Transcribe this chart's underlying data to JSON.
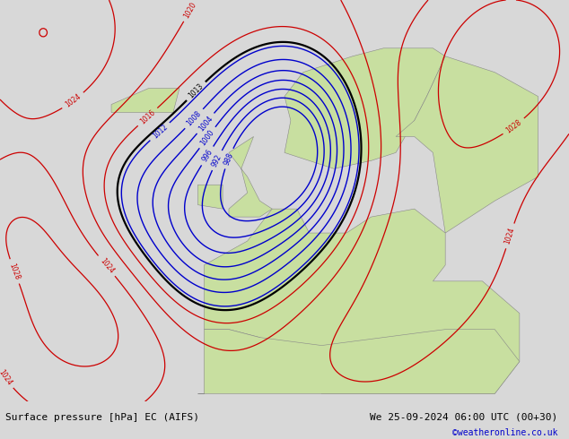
{
  "title_left": "Surface pressure [hPa] EC (AIFS)",
  "title_right": "We 25-09-2024 06:00 UTC (00+30)",
  "copyright": "©weatheronline.co.uk",
  "land_color": "#c8dfa0",
  "ocean_color": "#dcdce8",
  "coast_color": "#888888",
  "mountain_color": "#b0b0a0",
  "contour_color_low": "#0000cc",
  "contour_color_high": "#cc0000",
  "contour_color_1013": "#000000",
  "font_size_labels": 6,
  "font_size_title": 8,
  "font_size_copyright": 7,
  "lon_min": -42,
  "lon_max": 50,
  "lat_min": 27,
  "lat_max": 77
}
